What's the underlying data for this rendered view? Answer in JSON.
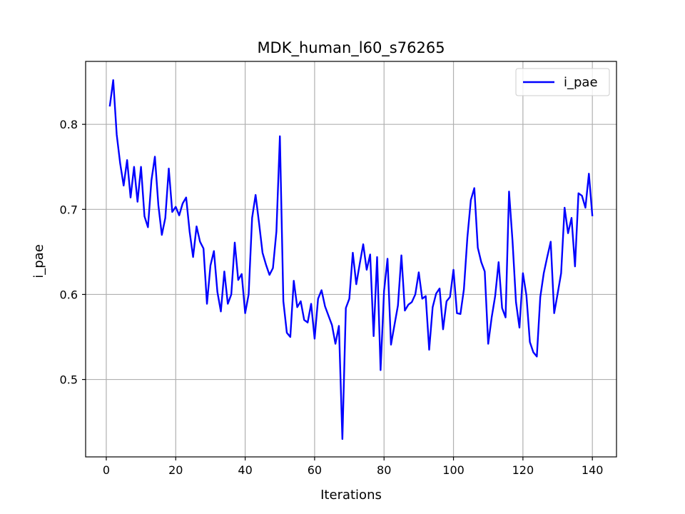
{
  "chart_data": {
    "type": "line",
    "title": "MDK_human_l60_s76265",
    "xlabel": "Iterations",
    "ylabel": "i_pae",
    "xlim": [
      -5.95,
      146.95
    ],
    "ylim": [
      0.409,
      0.874
    ],
    "xticks": [
      0,
      20,
      40,
      60,
      80,
      100,
      120,
      140
    ],
    "yticks": [
      0.5,
      0.6,
      0.7,
      0.8
    ],
    "ytick_labels": [
      "0.5",
      "0.6",
      "0.7",
      "0.8"
    ],
    "grid": true,
    "legend_position": "upper right",
    "series": [
      {
        "name": "i_pae",
        "color": "#0000ff",
        "x": [
          1,
          2,
          3,
          4,
          5,
          6,
          7,
          8,
          9,
          10,
          11,
          12,
          13,
          14,
          15,
          16,
          17,
          18,
          19,
          20,
          21,
          22,
          23,
          24,
          25,
          26,
          27,
          28,
          29,
          30,
          31,
          32,
          33,
          34,
          35,
          36,
          37,
          38,
          39,
          40,
          41,
          42,
          43,
          44,
          45,
          46,
          47,
          48,
          49,
          50,
          51,
          52,
          53,
          54,
          55,
          56,
          57,
          58,
          59,
          60,
          61,
          62,
          63,
          64,
          65,
          66,
          67,
          68,
          69,
          70,
          71,
          72,
          73,
          74,
          75,
          76,
          77,
          78,
          79,
          80,
          81,
          82,
          83,
          84,
          85,
          86,
          87,
          88,
          89,
          90,
          91,
          92,
          93,
          94,
          95,
          96,
          97,
          98,
          99,
          100,
          101,
          102,
          103,
          104,
          105,
          106,
          107,
          108,
          109,
          110,
          111,
          112,
          113,
          114,
          115,
          116,
          117,
          118,
          119,
          120,
          121,
          122,
          123,
          124,
          125,
          126,
          127,
          128,
          129,
          130,
          131,
          132,
          133,
          134,
          135,
          136,
          137,
          138,
          139,
          140
        ],
        "values": [
          0.821,
          0.852,
          0.788,
          0.754,
          0.728,
          0.758,
          0.714,
          0.75,
          0.709,
          0.75,
          0.692,
          0.679,
          0.734,
          0.762,
          0.705,
          0.67,
          0.69,
          0.748,
          0.697,
          0.703,
          0.693,
          0.707,
          0.714,
          0.674,
          0.644,
          0.68,
          0.662,
          0.654,
          0.589,
          0.634,
          0.651,
          0.603,
          0.58,
          0.627,
          0.589,
          0.6,
          0.661,
          0.617,
          0.624,
          0.578,
          0.6,
          0.69,
          0.717,
          0.684,
          0.649,
          0.635,
          0.623,
          0.631,
          0.674,
          0.786,
          0.592,
          0.555,
          0.55,
          0.616,
          0.585,
          0.592,
          0.57,
          0.567,
          0.589,
          0.548,
          0.595,
          0.605,
          0.586,
          0.575,
          0.564,
          0.542,
          0.563,
          0.43,
          0.584,
          0.595,
          0.649,
          0.612,
          0.636,
          0.659,
          0.629,
          0.647,
          0.551,
          0.644,
          0.511,
          0.604,
          0.642,
          0.541,
          0.564,
          0.587,
          0.646,
          0.581,
          0.588,
          0.591,
          0.6,
          0.626,
          0.595,
          0.598,
          0.535,
          0.585,
          0.601,
          0.607,
          0.559,
          0.592,
          0.597,
          0.629,
          0.578,
          0.577,
          0.606,
          0.667,
          0.711,
          0.725,
          0.655,
          0.638,
          0.627,
          0.542,
          0.573,
          0.598,
          0.638,
          0.584,
          0.573,
          0.721,
          0.663,
          0.591,
          0.561,
          0.625,
          0.599,
          0.544,
          0.532,
          0.527,
          0.597,
          0.625,
          0.644,
          0.662,
          0.578,
          0.601,
          0.625,
          0.702,
          0.672,
          0.69,
          0.633,
          0.719,
          0.716,
          0.702,
          0.742,
          0.692
        ]
      }
    ]
  }
}
